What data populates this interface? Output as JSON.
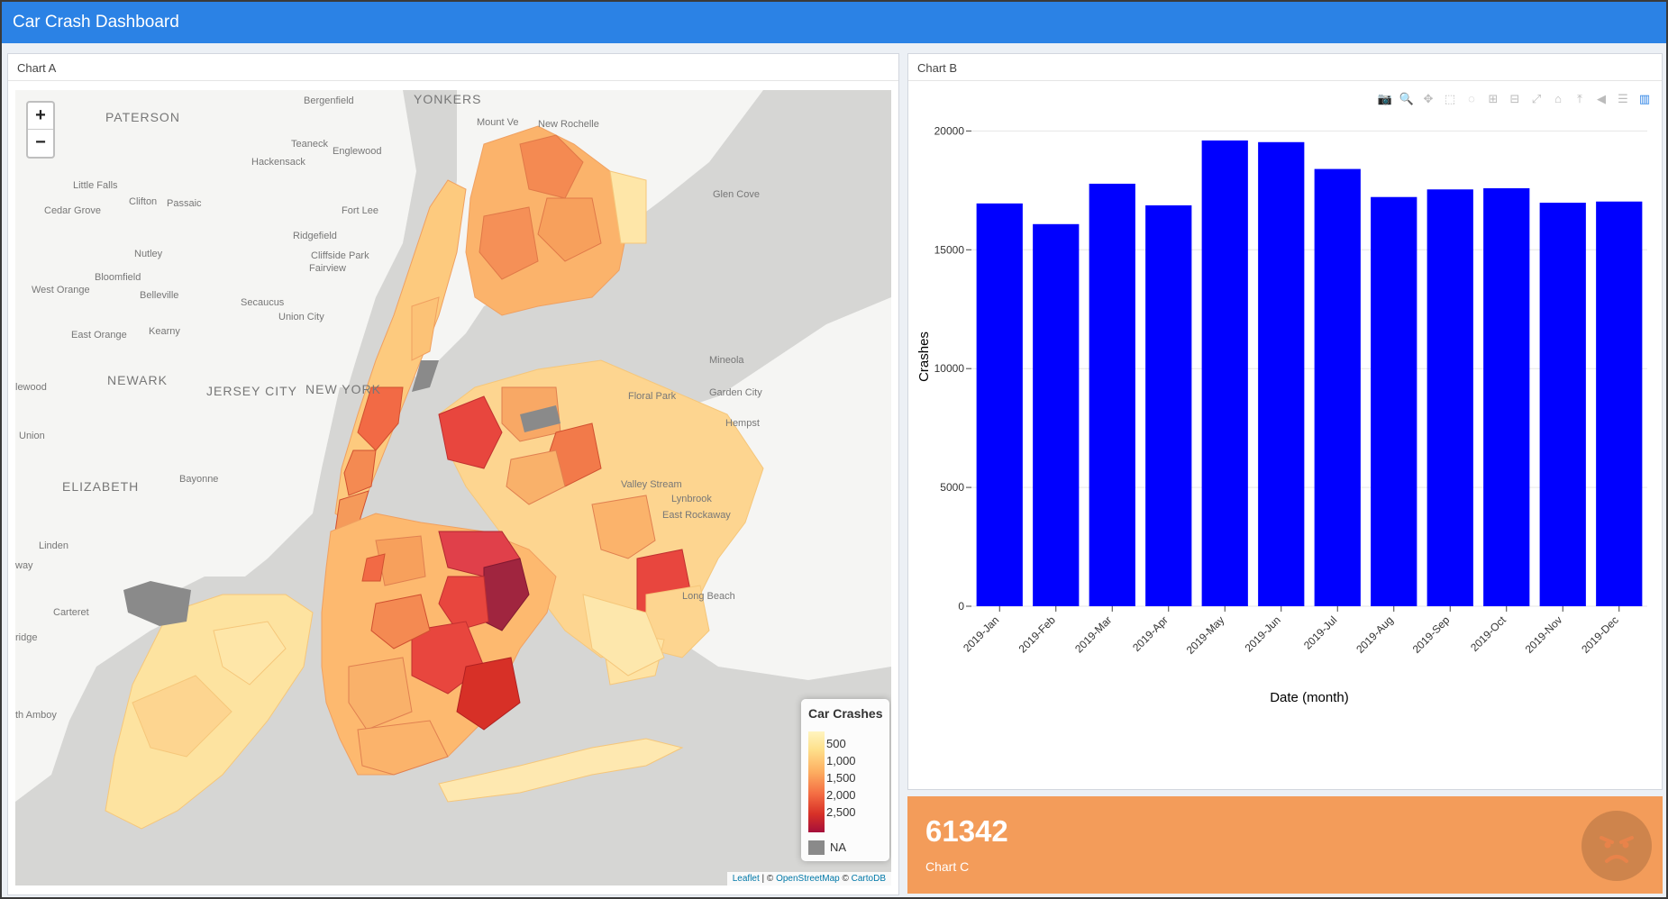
{
  "header": {
    "title": "Car Crash Dashboard"
  },
  "chart_a": {
    "title": "Chart A",
    "zoom_in": "+",
    "zoom_out": "−",
    "places": [
      {
        "name": "YONKERS",
        "big": true
      },
      {
        "name": "Bergenfield"
      },
      {
        "name": "PATERSON",
        "big": true
      },
      {
        "name": "Mount Ve"
      },
      {
        "name": "New Rochelle"
      },
      {
        "name": "Teaneck"
      },
      {
        "name": "Englewood"
      },
      {
        "name": "Hackensack"
      },
      {
        "name": "Little Falls"
      },
      {
        "name": "Clifton"
      },
      {
        "name": "Passaic"
      },
      {
        "name": "Cedar Grove"
      },
      {
        "name": "Fort Lee"
      },
      {
        "name": "Glen Cove"
      },
      {
        "name": "Ridgefield"
      },
      {
        "name": "Nutley"
      },
      {
        "name": "Cliffside Park"
      },
      {
        "name": "Fairview"
      },
      {
        "name": "Bloomfield"
      },
      {
        "name": "West Orange"
      },
      {
        "name": "Belleville"
      },
      {
        "name": "Secaucus"
      },
      {
        "name": "Union City"
      },
      {
        "name": "East Orange"
      },
      {
        "name": "Kearny"
      },
      {
        "name": "Mineola"
      },
      {
        "name": "NEWARK",
        "big": true
      },
      {
        "name": "JERSEY CITY",
        "big": true
      },
      {
        "name": "NEW YORK",
        "big": true
      },
      {
        "name": "lewood"
      },
      {
        "name": "Floral Park"
      },
      {
        "name": "Garden City"
      },
      {
        "name": "Hempst"
      },
      {
        "name": "Union"
      },
      {
        "name": "ELIZABETH",
        "big": true
      },
      {
        "name": "Bayonne"
      },
      {
        "name": "Valley Stream"
      },
      {
        "name": "Lynbrook"
      },
      {
        "name": "East Rockaway"
      },
      {
        "name": "Linden"
      },
      {
        "name": "way"
      },
      {
        "name": "Long Beach"
      },
      {
        "name": "Carteret"
      },
      {
        "name": "ridge"
      },
      {
        "name": "th Amboy"
      }
    ],
    "legend": {
      "title": "Car Crashes",
      "values": [
        "500",
        "1,000",
        "1,500",
        "2,000",
        "2,500"
      ],
      "na_label": "NA"
    },
    "attribution": {
      "leaflet": "Leaflet",
      "sep1": " | © ",
      "osm": "OpenStreetMap",
      "sep2": " © ",
      "carto": "CartoDB"
    }
  },
  "chart_b": {
    "title": "Chart B"
  },
  "chart_data": {
    "type": "bar",
    "categories": [
      "2019-Jan",
      "2019-Feb",
      "2019-Mar",
      "2019-Apr",
      "2019-May",
      "2019-Jun",
      "2019-Jul",
      "2019-Aug",
      "2019-Sep",
      "2019-Oct",
      "2019-Nov",
      "2019-Dec"
    ],
    "values": [
      16950,
      16080,
      17780,
      16870,
      19600,
      19530,
      18400,
      17220,
      17540,
      17590,
      16980,
      17030
    ],
    "xlabel": "Date (month)",
    "ylabel": "Crashes",
    "ylim": [
      0,
      21000
    ],
    "yticks": [
      0,
      5000,
      10000,
      15000,
      20000
    ],
    "bar_color": "#0000ff",
    "grid": true
  },
  "chart_c": {
    "value": "61342",
    "label": "Chart C",
    "color": "#f39c5a"
  }
}
